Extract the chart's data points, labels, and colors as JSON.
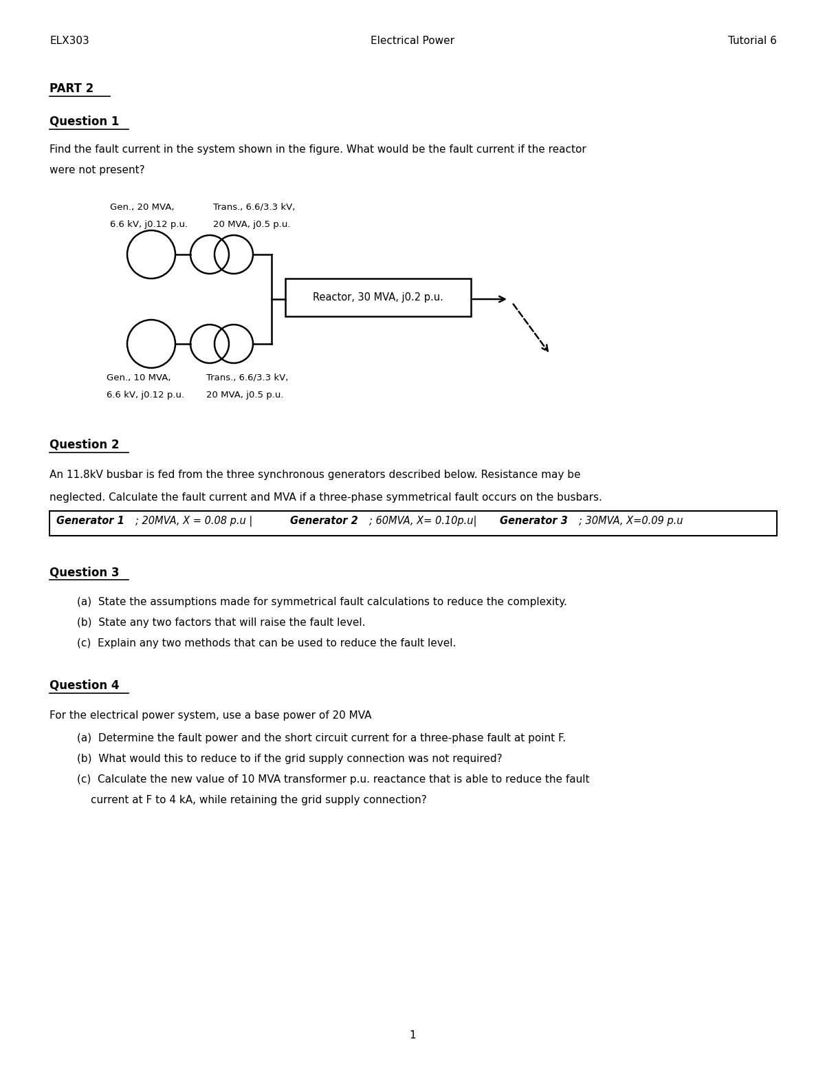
{
  "header_left": "ELX303",
  "header_center": "Electrical Power",
  "header_right": "Tutorial 6",
  "part2": "PART 2",
  "q1_title": "Question 1",
  "gen1_label_line1": "Gen., 20 MVA,",
  "gen1_label_line2": "6.6 kV, j0.12 p.u.",
  "trans1_label_line1": "Trans., 6.6/3.3 kV,",
  "trans1_label_line2": "20 MVA, j0.5 p.u.",
  "reactor_label": "Reactor, 30 MVA, j0.2 p.u.",
  "gen2_label_line1": "Gen., 10 MVA,",
  "gen2_label_line2": "6.6 kV, j0.12 p.u.",
  "trans2_label_line1": "Trans., 6.6/3.3 kV,",
  "trans2_label_line2": "20 MVA, j0.5 p.u.",
  "q2_title": "Question 2",
  "q2_line1": "An 11.8kV busbar is fed from the three synchronous generators described below. Resistance may be",
  "q2_line2": "neglected. Calculate the fault current and MVA if a three-phase symmetrical fault occurs on the busbars.",
  "q3_title": "Question 3",
  "q3a": "(a)  State the assumptions made for symmetrical fault calculations to reduce the complexity.",
  "q3b": "(b)  State any two factors that will raise the fault level.",
  "q3c": "(c)  Explain any two methods that can be used to reduce the fault level.",
  "q4_title": "Question 4",
  "q4_intro": "For the electrical power system, use a base power of 20 MVA",
  "q4a": "(a)  Determine the fault power and the short circuit current for a three-phase fault at point F.",
  "q4b": "(b)  What would this to reduce to if the grid supply connection was not required?",
  "q4c_line1": "(c)  Calculate the new value of 10 MVA transformer p.u. reactance that is able to reduce the fault",
  "q4c_line2": "      current at F to 4 kA, while retaining the grid supply connection?",
  "page_number": "1",
  "background_color": "#ffffff"
}
